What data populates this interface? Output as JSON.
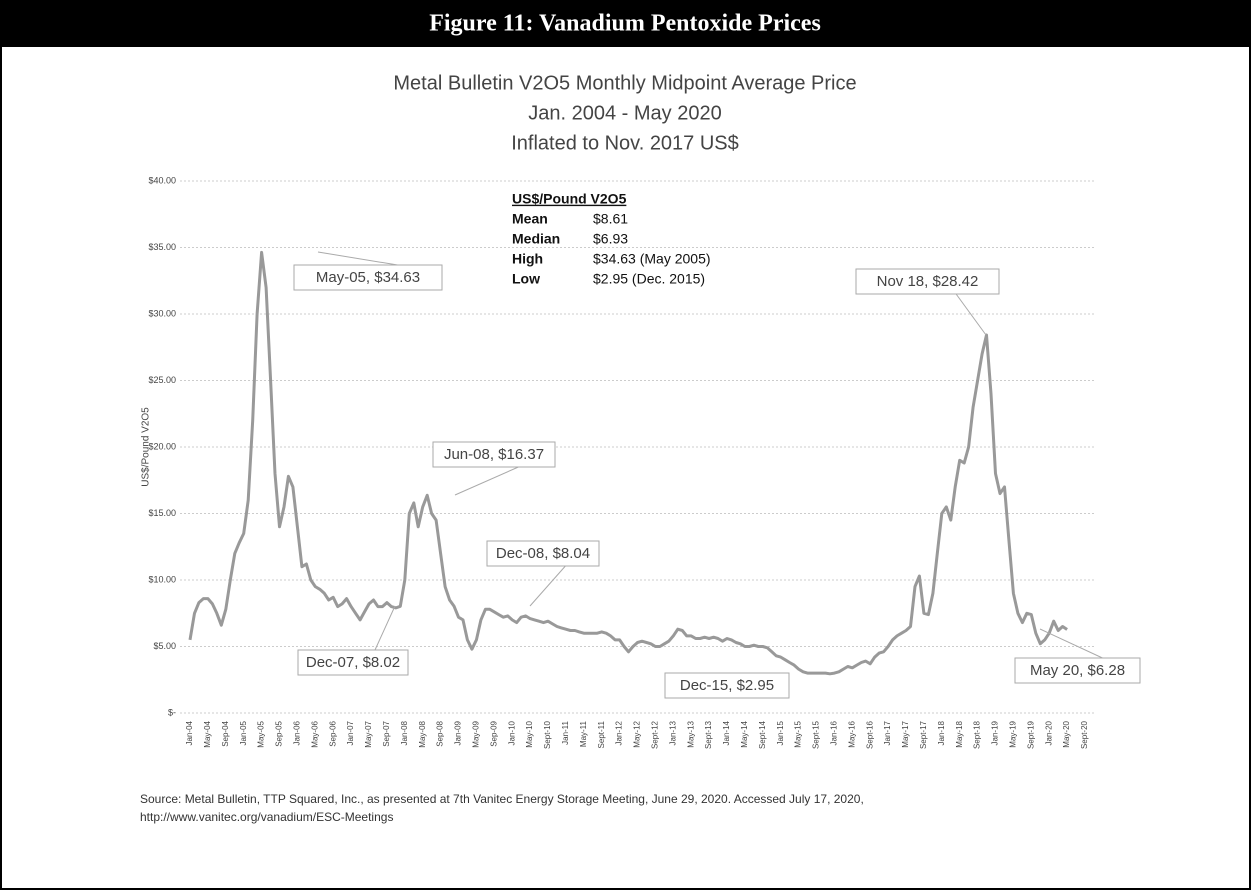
{
  "figure_title": "Figure 11: Vanadium Pentoxide Prices",
  "source": [
    "Source: Metal Bulletin, TTP Squared, Inc., as presented at 7th Vanitec Energy Storage Meeting, June 29, 2020. Accessed July 17, 2020,",
    "http://www.vanitec.org/vanadium/ESC-Meetings"
  ],
  "chart_data": {
    "type": "line",
    "title": "Metal Bulletin V2O5 Monthly Midpoint Average Price",
    "subtitle": [
      "Jan. 2004 - May 2020",
      "Inflated to Nov. 2017 US$"
    ],
    "y_label": "US$/Pound V2O5",
    "ylim": [
      0,
      40
    ],
    "yticks": [
      {
        "value": 0,
        "label": "$-"
      },
      {
        "value": 5,
        "label": "$5.00"
      },
      {
        "value": 10,
        "label": "$10.00"
      },
      {
        "value": 15,
        "label": "$15.00"
      },
      {
        "value": 20,
        "label": "$20.00"
      },
      {
        "value": 25,
        "label": "$25.00"
      },
      {
        "value": 30,
        "label": "$30.00"
      },
      {
        "value": 35,
        "label": "$35.00"
      },
      {
        "value": 40,
        "label": "$40.00"
      }
    ],
    "grid": true,
    "categories": [
      "Jan-04",
      null,
      null,
      null,
      "May-04",
      null,
      null,
      null,
      "Sep-04",
      null,
      null,
      null,
      "Jan-05",
      null,
      null,
      null,
      "May-05",
      null,
      null,
      null,
      "Sep-05",
      null,
      null,
      null,
      "Jan-06",
      null,
      null,
      null,
      "May-06",
      null,
      null,
      null,
      "Sep-06",
      null,
      null,
      null,
      "Jan-07",
      null,
      null,
      null,
      "May-07",
      null,
      null,
      null,
      "Sep-07",
      null,
      null,
      null,
      "Jan-08",
      null,
      null,
      null,
      "May-08",
      null,
      null,
      null,
      "Sep-08",
      null,
      null,
      null,
      "Jan-09",
      null,
      null,
      null,
      "May-09",
      null,
      null,
      null,
      "Sep-09",
      null,
      null,
      null,
      "Jan-10",
      null,
      null,
      null,
      "May-10",
      null,
      null,
      null,
      "Sept-10",
      null,
      null,
      null,
      "Jan-11",
      null,
      null,
      null,
      "May-11",
      null,
      null,
      null,
      "Sept-11",
      null,
      null,
      null,
      "Jan-12",
      null,
      null,
      null,
      "May-12",
      null,
      null,
      null,
      "Sept-12",
      null,
      null,
      null,
      "Jan-13",
      null,
      null,
      null,
      "May-13",
      null,
      null,
      null,
      "Sept-13",
      null,
      null,
      null,
      "Jan-14",
      null,
      null,
      null,
      "May-14",
      null,
      null,
      null,
      "Sept-14",
      null,
      null,
      null,
      "Jan-15",
      null,
      null,
      null,
      "May-15",
      null,
      null,
      null,
      "Sept-15",
      null,
      null,
      null,
      "Jan-16",
      null,
      null,
      null,
      "May-16",
      null,
      null,
      null,
      "Sept-16",
      null,
      null,
      null,
      "Jan-17",
      null,
      null,
      null,
      "May-17",
      null,
      null,
      null,
      "Sept-17",
      null,
      null,
      null,
      "Jan-18",
      null,
      null,
      null,
      "May-18",
      null,
      null,
      null,
      "Sept-18",
      null,
      null,
      null,
      "Jan-19",
      null,
      null,
      null,
      "May-19",
      null,
      null,
      null,
      "Sept-19",
      null,
      null,
      null,
      "Jan-20",
      null,
      null,
      null,
      "May-20",
      null,
      null,
      null,
      "Sept-20"
    ],
    "series": [
      {
        "name": "V2O5",
        "color": "#999999",
        "values": [
          5.5,
          7.5,
          8.3,
          8.6,
          8.6,
          8.2,
          7.5,
          6.6,
          7.8,
          10,
          12,
          12.8,
          13.5,
          16,
          22,
          30,
          34.63,
          32,
          25,
          18,
          14,
          15.5,
          17.8,
          17,
          14,
          11,
          11.2,
          10,
          9.5,
          9.3,
          9,
          8.5,
          8.7,
          8,
          8.2,
          8.6,
          8,
          7.5,
          7,
          7.6,
          8.2,
          8.5,
          8,
          8,
          8.3,
          8,
          7.9,
          8.02,
          10,
          15,
          15.8,
          14,
          15.5,
          16.37,
          15,
          14.5,
          12,
          9.5,
          8.5,
          8.04,
          7.2,
          7,
          5.5,
          4.8,
          5.5,
          7,
          7.8,
          7.8,
          7.6,
          7.4,
          7.2,
          7.3,
          7,
          6.8,
          7.2,
          7.3,
          7.1,
          7,
          6.9,
          6.8,
          6.9,
          6.7,
          6.5,
          6.4,
          6.3,
          6.2,
          6.2,
          6.1,
          6,
          6,
          6,
          6,
          6.1,
          6,
          5.8,
          5.5,
          5.5,
          5,
          4.6,
          5,
          5.3,
          5.4,
          5.3,
          5.2,
          5,
          5,
          5.2,
          5.4,
          5.8,
          6.3,
          6.2,
          5.8,
          5.8,
          5.6,
          5.6,
          5.7,
          5.6,
          5.7,
          5.6,
          5.4,
          5.6,
          5.5,
          5.3,
          5.2,
          5,
          5,
          5.1,
          5,
          5,
          4.9,
          4.6,
          4.3,
          4.2,
          4,
          3.8,
          3.6,
          3.3,
          3.1,
          3,
          3,
          3,
          3,
          3,
          2.95,
          3,
          3.1,
          3.3,
          3.5,
          3.4,
          3.6,
          3.8,
          3.9,
          3.7,
          4.2,
          4.5,
          4.6,
          5,
          5.5,
          5.8,
          6,
          6.2,
          6.5,
          9.5,
          10.3,
          7.5,
          7.4,
          9,
          12,
          15,
          15.5,
          14.5,
          17,
          19,
          18.8,
          20,
          23,
          25,
          27,
          28.42,
          24,
          18,
          16.5,
          17,
          13,
          9,
          7.5,
          6.8,
          7.5,
          7.4,
          6,
          5.2,
          5.5,
          6,
          6.9,
          6.2,
          6.5,
          6.28,
          null,
          null,
          null,
          null
        ]
      }
    ],
    "annotations": [
      "May-05, $34.63",
      "Jun-08, $16.37",
      "Dec-08, $8.04",
      "Dec-07, $8.02",
      "Dec-15, $2.95",
      "Nov 18, $28.42",
      "May 20, $6.28"
    ],
    "stats_box": {
      "title": "US$/Pound V2O5",
      "rows": [
        [
          "Mean",
          "$8.61"
        ],
        [
          "Median",
          "$6.93"
        ],
        [
          "High",
          "$34.63  (May 2005)"
        ],
        [
          "Low",
          "$2.95 (Dec. 2015)"
        ]
      ]
    }
  }
}
